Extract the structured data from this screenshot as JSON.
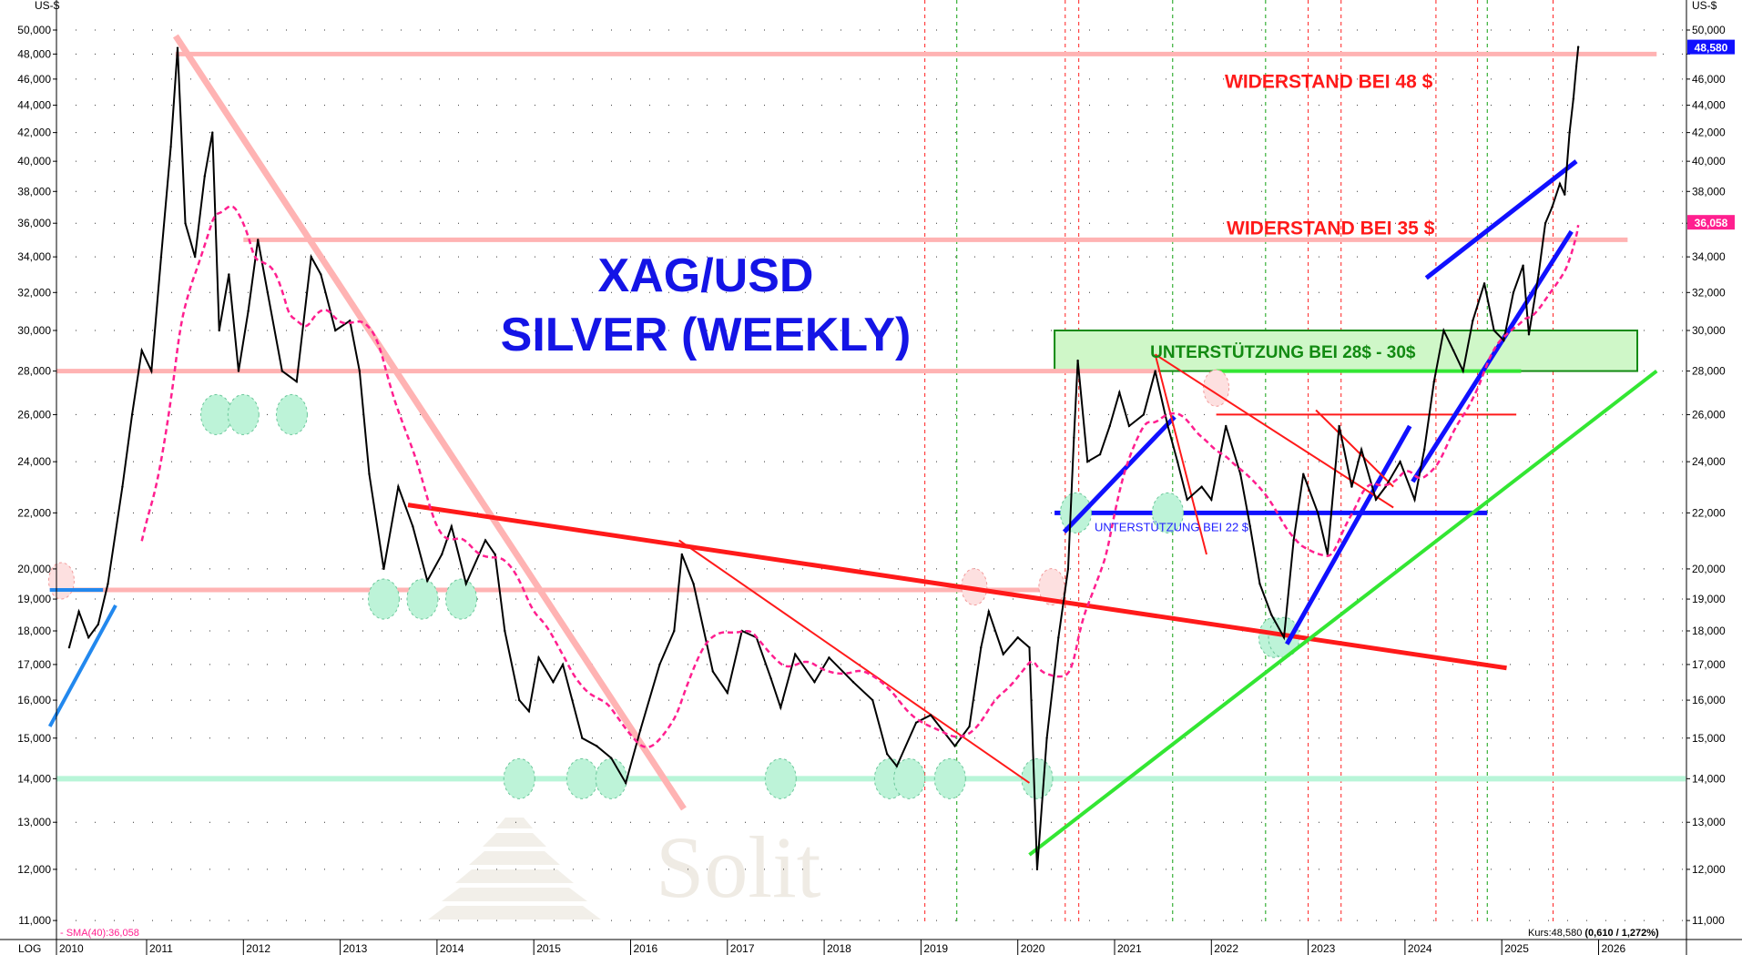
{
  "chart_data": {
    "type": "line",
    "title": "XAG/USD",
    "subtitle": "SILVER (WEEKLY)",
    "y_scale": "log",
    "y_unit_label": "US-$",
    "scale_label": "LOG",
    "ylim": [
      11,
      50
    ],
    "xlim": [
      2010.0,
      2026.9
    ],
    "grid": "dotted horizontal",
    "y_ticks": [
      11,
      12,
      13,
      14,
      15,
      16,
      17,
      18,
      19,
      20,
      22,
      24,
      26,
      28,
      30,
      32,
      34,
      36,
      38,
      40,
      42,
      44,
      46,
      48,
      50
    ],
    "x_ticks": [
      "2010",
      "2011",
      "2012",
      "2013",
      "2014",
      "2015",
      "2016",
      "2017",
      "2018",
      "2019",
      "2020",
      "2021",
      "2022",
      "2023",
      "2024",
      "2025",
      "2026"
    ],
    "last_price_label": "48,580",
    "sma_price_label": "36,058",
    "sma_legend": "- SMA(40):36,058",
    "kurs_label": "Kurs:48,580",
    "kurs_change": "(0,610 / 1,272%)",
    "colors": {
      "price": "#000000",
      "sma": "#ff1f8f",
      "resistance": "#ffb3b3",
      "support_zone": "#cff7c8",
      "support_14": "#b8f5d8",
      "blue": "#1010ff",
      "red": "#ff1a1a",
      "green": "#33e633",
      "last_price_bg": "#1010ff",
      "sma_bg": "#ff1f8f"
    },
    "series": [
      {
        "name": "SMA(40)",
        "type": "sma",
        "period_weeks": 40
      },
      {
        "type": "price",
        "points": [
          [
            2010.2,
            17.5
          ],
          [
            2010.3,
            18.6
          ],
          [
            2010.4,
            17.8
          ],
          [
            2010.5,
            18.2
          ],
          [
            2010.6,
            19.5
          ],
          [
            2010.75,
            23
          ],
          [
            2010.85,
            26
          ],
          [
            2010.95,
            29
          ],
          [
            2011.05,
            28
          ],
          [
            2011.15,
            34
          ],
          [
            2011.25,
            41
          ],
          [
            2011.32,
            48.5
          ],
          [
            2011.4,
            36
          ],
          [
            2011.5,
            34
          ],
          [
            2011.6,
            39
          ],
          [
            2011.68,
            42
          ],
          [
            2011.75,
            30
          ],
          [
            2011.85,
            33
          ],
          [
            2011.95,
            28
          ],
          [
            2012.05,
            31
          ],
          [
            2012.15,
            35
          ],
          [
            2012.25,
            32
          ],
          [
            2012.4,
            28
          ],
          [
            2012.55,
            27.5
          ],
          [
            2012.7,
            34
          ],
          [
            2012.8,
            33
          ],
          [
            2012.95,
            30
          ],
          [
            2013.1,
            30.5
          ],
          [
            2013.2,
            28
          ],
          [
            2013.3,
            23.5
          ],
          [
            2013.45,
            20
          ],
          [
            2013.6,
            23
          ],
          [
            2013.75,
            21.5
          ],
          [
            2013.9,
            19.6
          ],
          [
            2014.05,
            20.5
          ],
          [
            2014.15,
            21.5
          ],
          [
            2014.3,
            19.5
          ],
          [
            2014.5,
            21
          ],
          [
            2014.6,
            20.5
          ],
          [
            2014.7,
            18
          ],
          [
            2014.85,
            16
          ],
          [
            2014.95,
            15.7
          ],
          [
            2015.05,
            17.2
          ],
          [
            2015.2,
            16.5
          ],
          [
            2015.3,
            17
          ],
          [
            2015.5,
            15
          ],
          [
            2015.65,
            14.8
          ],
          [
            2015.8,
            14.5
          ],
          [
            2015.95,
            13.9
          ],
          [
            2016.1,
            15.2
          ],
          [
            2016.3,
            17
          ],
          [
            2016.45,
            18
          ],
          [
            2016.53,
            20.5
          ],
          [
            2016.65,
            19.5
          ],
          [
            2016.85,
            16.8
          ],
          [
            2017.0,
            16.2
          ],
          [
            2017.15,
            18
          ],
          [
            2017.3,
            17.8
          ],
          [
            2017.45,
            16.6
          ],
          [
            2017.55,
            15.8
          ],
          [
            2017.7,
            17.3
          ],
          [
            2017.9,
            16.5
          ],
          [
            2018.05,
            17.2
          ],
          [
            2018.3,
            16.5
          ],
          [
            2018.5,
            16
          ],
          [
            2018.65,
            14.6
          ],
          [
            2018.75,
            14.3
          ],
          [
            2018.95,
            15.4
          ],
          [
            2019.1,
            15.6
          ],
          [
            2019.35,
            14.8
          ],
          [
            2019.5,
            15.3
          ],
          [
            2019.62,
            17.5
          ],
          [
            2019.7,
            18.6
          ],
          [
            2019.85,
            17.3
          ],
          [
            2020.0,
            17.8
          ],
          [
            2020.12,
            17.5
          ],
          [
            2020.2,
            12
          ],
          [
            2020.3,
            15
          ],
          [
            2020.42,
            17.8
          ],
          [
            2020.52,
            20
          ],
          [
            2020.58,
            25
          ],
          [
            2020.62,
            28.5
          ],
          [
            2020.72,
            24
          ],
          [
            2020.85,
            24.3
          ],
          [
            2020.95,
            25.5
          ],
          [
            2021.05,
            27
          ],
          [
            2021.15,
            25.5
          ],
          [
            2021.3,
            26
          ],
          [
            2021.42,
            28
          ],
          [
            2021.55,
            25.5
          ],
          [
            2021.65,
            24
          ],
          [
            2021.75,
            22.5
          ],
          [
            2021.9,
            23
          ],
          [
            2022.0,
            22.5
          ],
          [
            2022.15,
            25.5
          ],
          [
            2022.3,
            23.5
          ],
          [
            2022.4,
            21.5
          ],
          [
            2022.5,
            19.5
          ],
          [
            2022.62,
            18.5
          ],
          [
            2022.75,
            17.8
          ],
          [
            2022.85,
            21
          ],
          [
            2022.95,
            23.5
          ],
          [
            2023.1,
            22
          ],
          [
            2023.2,
            20.5
          ],
          [
            2023.32,
            25.5
          ],
          [
            2023.45,
            23
          ],
          [
            2023.55,
            24.5
          ],
          [
            2023.7,
            22.5
          ],
          [
            2023.8,
            23
          ],
          [
            2023.95,
            24
          ],
          [
            2024.1,
            22.5
          ],
          [
            2024.2,
            24.5
          ],
          [
            2024.3,
            27.5
          ],
          [
            2024.4,
            30
          ],
          [
            2024.5,
            29
          ],
          [
            2024.6,
            28
          ],
          [
            2024.7,
            30.5
          ],
          [
            2024.82,
            32.5
          ],
          [
            2024.92,
            30
          ],
          [
            2025.02,
            29.5
          ],
          [
            2025.12,
            32
          ],
          [
            2025.22,
            33.5
          ],
          [
            2025.28,
            29.8
          ],
          [
            2025.38,
            33
          ],
          [
            2025.45,
            36
          ],
          [
            2025.52,
            37
          ],
          [
            2025.6,
            38.5
          ],
          [
            2025.65,
            37.8
          ],
          [
            2025.7,
            42
          ],
          [
            2025.74,
            44.5
          ],
          [
            2025.77,
            47
          ],
          [
            2025.79,
            48.58
          ]
        ]
      }
    ],
    "horizontal_levels": [
      {
        "value": 48,
        "from": 2011.3,
        "to": 2026.6,
        "style": "resistance",
        "label": "WIDERSTAND BEI 48 $"
      },
      {
        "value": 35,
        "from": 2012.0,
        "to": 2026.3,
        "style": "resistance",
        "label": "WIDERSTAND BEI 35 $"
      },
      {
        "value": 28,
        "from": 2010.0,
        "to": 2021.45,
        "style": "resistance"
      },
      {
        "value": 19.3,
        "from": 2010.0,
        "to": 2020.5,
        "style": "resistance"
      },
      {
        "value": 14,
        "from": 2010.0,
        "to": 2026.9,
        "style": "support_14"
      },
      {
        "value": 22,
        "from": 2020.38,
        "to": 2024.85,
        "style": "blue",
        "label": "UNTERSTÜTZUNG BEI 22 $"
      },
      {
        "value": 26,
        "from": 2022.05,
        "to": 2025.15,
        "style": "red_thin"
      },
      {
        "value": 28,
        "from": 2022.05,
        "to": 2025.2,
        "style": "green"
      }
    ],
    "support_zone": {
      "low": 28,
      "high": 30,
      "from": 2020.38,
      "to": 2026.4,
      "label": "UNTERSTÜTZUNG BEI 28$ - 30$"
    },
    "trendlines": [
      {
        "style": "resistance_thick",
        "from": [
          2011.3,
          49.5
        ],
        "to": [
          2016.55,
          13.3
        ]
      },
      {
        "style": "red_thick",
        "from": [
          2013.7,
          22.3
        ],
        "to": [
          2025.05,
          16.9
        ]
      },
      {
        "style": "red_thin",
        "from": [
          2016.5,
          21
        ],
        "to": [
          2020.12,
          13.9
        ]
      },
      {
        "style": "green",
        "from": [
          2020.12,
          12.3
        ],
        "to": [
          2026.6,
          28
        ]
      },
      {
        "style": "light_blue",
        "from": [
          2010.0,
          15.3
        ],
        "to": [
          2010.68,
          18.8
        ]
      },
      {
        "style": "light_blue",
        "from": [
          2010.0,
          19.3
        ],
        "to": [
          2010.55,
          19.3
        ]
      },
      {
        "style": "blue",
        "from": [
          2020.48,
          21.3
        ],
        "to": [
          2021.62,
          25.9
        ]
      },
      {
        "style": "blue",
        "from": [
          2022.78,
          17.6
        ],
        "to": [
          2024.05,
          25.5
        ]
      },
      {
        "style": "blue",
        "from": [
          2024.08,
          23.2
        ],
        "to": [
          2025.72,
          35.5
        ]
      },
      {
        "style": "blue",
        "from": [
          2024.22,
          32.8
        ],
        "to": [
          2025.77,
          40
        ]
      },
      {
        "style": "red_thin",
        "from": [
          2021.42,
          28.8
        ],
        "to": [
          2023.88,
          22.2
        ]
      },
      {
        "style": "red_thin",
        "from": [
          2021.42,
          28.8
        ],
        "to": [
          2021.95,
          20.5
        ]
      },
      {
        "style": "red_thin",
        "from": [
          2023.08,
          26.2
        ],
        "to": [
          2023.88,
          23
        ]
      }
    ],
    "event_lines": {
      "red": [
        2019.04,
        2020.49,
        2020.63,
        2023.0,
        2023.34,
        2024.32,
        2024.75,
        2025.53
      ],
      "green": [
        2019.37,
        2021.6,
        2022.56,
        2024.85
      ]
    },
    "markers": {
      "support": [
        [
          2011.72,
          26
        ],
        [
          2012.0,
          26
        ],
        [
          2012.5,
          26
        ],
        [
          2013.45,
          19
        ],
        [
          2013.85,
          19
        ],
        [
          2014.25,
          19
        ],
        [
          2014.85,
          14
        ],
        [
          2015.5,
          14
        ],
        [
          2015.8,
          14
        ],
        [
          2017.55,
          14
        ],
        [
          2018.68,
          14
        ],
        [
          2018.88,
          14
        ],
        [
          2019.3,
          14
        ],
        [
          2020.2,
          14
        ],
        [
          2022.65,
          17.8
        ],
        [
          2022.75,
          17.8
        ],
        [
          2021.55,
          22
        ],
        [
          2020.6,
          22
        ]
      ],
      "resistance": [
        [
          2010.12,
          19.6
        ],
        [
          2019.55,
          19.4
        ],
        [
          2020.35,
          19.4
        ],
        [
          2022.05,
          27.2
        ]
      ]
    },
    "watermark": "Solit"
  }
}
